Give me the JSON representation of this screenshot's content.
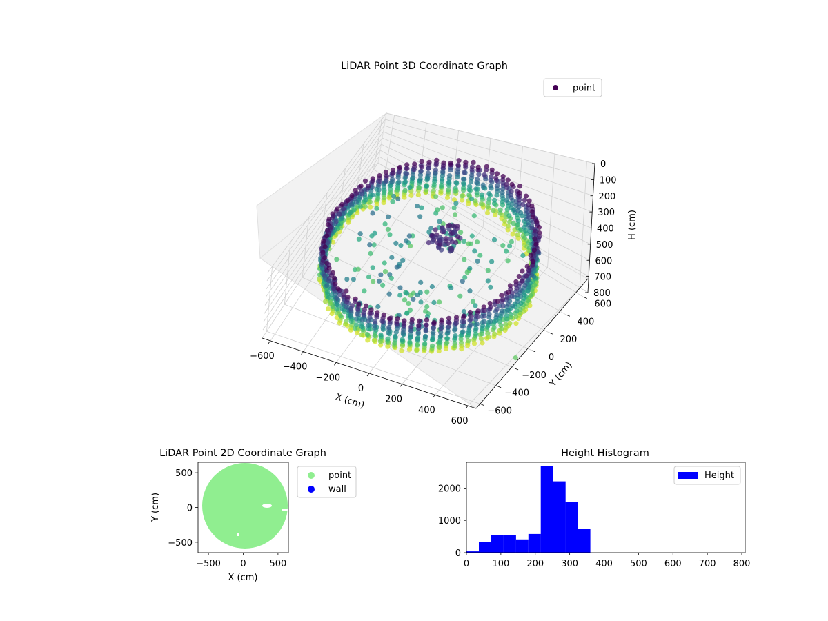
{
  "figure_titles": {
    "plot3d": "LiDAR Point 3D Coordinate Graph",
    "plot2d": "LiDAR Point 2D Coordinate Graph",
    "hist": "Height Histogram"
  },
  "colors": {
    "point_2d": "#90ee90",
    "wall": "#0000ff",
    "hist_bar": "#0000ff",
    "legend_point_3d": "#440154",
    "pane": "#f2f2f2",
    "grid": "#d0d0d0"
  },
  "chart_data": [
    {
      "type": "scatter",
      "title": "LiDAR Point 3D Coordinate Graph",
      "xlabel": "X (cm)",
      "ylabel": "Y (cm)",
      "zlabel": "H (cm)",
      "xlim": [
        -650,
        650
      ],
      "ylim": [
        -650,
        650
      ],
      "zlim": [
        800,
        0
      ],
      "x_ticks": [
        "−600",
        "−400",
        "−200",
        "0",
        "200",
        "400",
        "600"
      ],
      "y_ticks": [
        "−600",
        "−400",
        "−200",
        "0",
        "200",
        "400",
        "600"
      ],
      "z_ticks": [
        "0",
        "100",
        "200",
        "300",
        "400",
        "500",
        "600",
        "700",
        "800"
      ],
      "legend": [
        "point"
      ],
      "legend_position": "top-right",
      "colormap": "viridis",
      "grid": true,
      "shape": "circular room scan, radius about 600 cm, wall heights about 200–350 cm",
      "outlier": {
        "x": 650,
        "y": -200,
        "h": 700
      }
    },
    {
      "type": "scatter",
      "title": "LiDAR Point 2D Coordinate Graph",
      "xlabel": "X (cm)",
      "ylabel": "Y (cm)",
      "xlim": [
        -650,
        650
      ],
      "ylim": [
        -650,
        650
      ],
      "x_ticks": [
        "−500",
        "0",
        "500"
      ],
      "y_ticks": [
        "−500",
        "0",
        "500"
      ],
      "series": [
        {
          "name": "point",
          "color": "#90ee90",
          "shape": "filled disc radius about 600 cm"
        },
        {
          "name": "wall",
          "color": "#0000ff"
        }
      ],
      "legend_position": "outside right"
    },
    {
      "type": "bar",
      "title": "Height Histogram",
      "xlim": [
        0,
        810
      ],
      "ylim": [
        0,
        2800
      ],
      "x_ticks": [
        "0",
        "100",
        "200",
        "300",
        "400",
        "500",
        "600",
        "700",
        "800"
      ],
      "y_ticks": [
        "0",
        "1000",
        "2000"
      ],
      "bin_edges": [
        0,
        36,
        72,
        108,
        144,
        180,
        216,
        252,
        288,
        324,
        360,
        396,
        432,
        468,
        504,
        540,
        576,
        612,
        648,
        684,
        720,
        756,
        792
      ],
      "series": [
        {
          "name": "Height",
          "values": [
            40,
            340,
            550,
            550,
            410,
            580,
            2680,
            2210,
            1580,
            740,
            0,
            0,
            0,
            0,
            0,
            0,
            0,
            0,
            0,
            0,
            0,
            0
          ]
        }
      ],
      "legend_position": "top-right"
    }
  ]
}
